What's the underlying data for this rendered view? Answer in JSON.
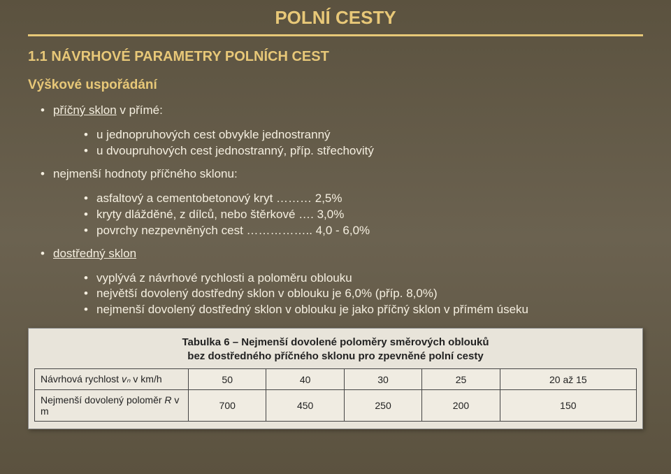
{
  "title": "POLNÍ CESTY",
  "section_num": "1.1 NÁVRHOVÉ PARAMETRY POLNÍCH CEST",
  "subheading": "Výškové uspořádání",
  "b1_label": "příčný sklon",
  "b1_rest": " v přímé:",
  "b1_sub1": "u jednopruhových cest obvykle jednostranný",
  "b1_sub2": "u dvoupruhových cest jednostranný, příp. střechovitý",
  "b2": "nejmenší hodnoty příčného sklonu:",
  "b2_sub1": "asfaltový a cementobetonový kryt ……… 2,5%",
  "b2_sub2": "kryty dlážděné, z dílců, nebo štěrkové …. 3,0%",
  "b2_sub3": "povrchy nezpevněných cest …………….. 4,0 - 6,0%",
  "b3_label": "dostředný sklon",
  "b3_sub1": "vyplývá z návrhové rychlosti a poloměru oblouku",
  "b3_sub2": "největší dovolený dostředný sklon v oblouku je 6,0% (příp. 8,0%)",
  "b3_sub3": "nejmenší dovolený dostředný sklon v oblouku je jako příčný sklon v přímém úseku",
  "table": {
    "caption_l1": "Tabulka 6 – Nejmenší dovolené poloměry směrových oblouků",
    "caption_l2": "bez dostředného příčného sklonu pro zpevněné polní cesty",
    "row1_head_a": "Návrhová rychlost ",
    "row1_head_b": "vₙ",
    "row1_head_c": " v km/h",
    "row2_head_a": "Nejmenší dovolený poloměr ",
    "row2_head_b": "R",
    "row2_head_c": " v m",
    "cols": [
      "50",
      "40",
      "30",
      "25",
      "20 až 15"
    ],
    "vals": [
      "700",
      "450",
      "250",
      "200",
      "150"
    ]
  }
}
